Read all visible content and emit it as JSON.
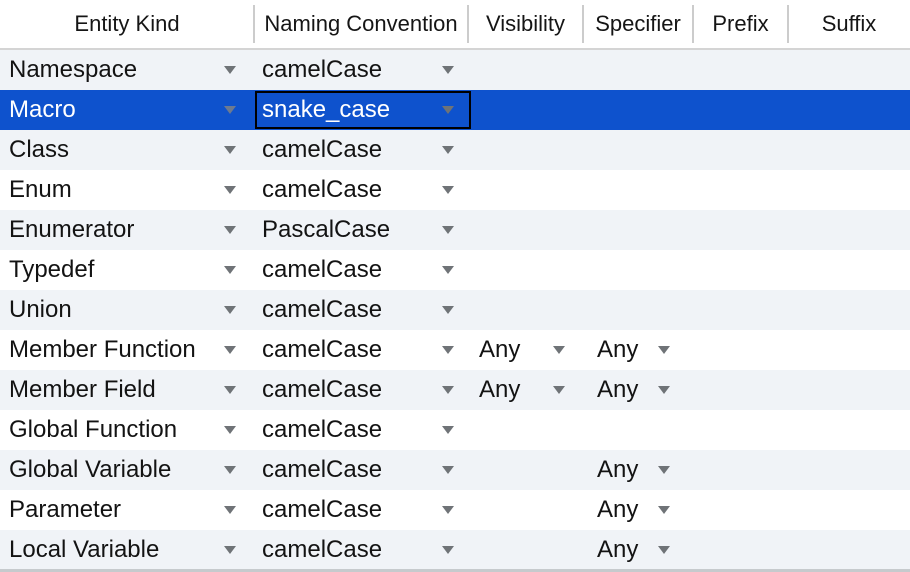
{
  "table": {
    "columns": [
      {
        "label": "Entity Kind"
      },
      {
        "label": "Naming Convention"
      },
      {
        "label": "Visibility"
      },
      {
        "label": "Specifier"
      },
      {
        "label": "Prefix"
      },
      {
        "label": "Suffix"
      }
    ],
    "rows": [
      {
        "entity": "Namespace",
        "naming": "camelCase",
        "visibility": "",
        "specifier": "",
        "prefix": "",
        "suffix": "",
        "selected": false
      },
      {
        "entity": "Macro",
        "naming": "snake_case",
        "visibility": "",
        "specifier": "",
        "prefix": "",
        "suffix": "",
        "selected": true
      },
      {
        "entity": "Class",
        "naming": "camelCase",
        "visibility": "",
        "specifier": "",
        "prefix": "",
        "suffix": "",
        "selected": false
      },
      {
        "entity": "Enum",
        "naming": "camelCase",
        "visibility": "",
        "specifier": "",
        "prefix": "",
        "suffix": "",
        "selected": false
      },
      {
        "entity": "Enumerator",
        "naming": "PascalCase",
        "visibility": "",
        "specifier": "",
        "prefix": "",
        "suffix": "",
        "selected": false
      },
      {
        "entity": "Typedef",
        "naming": "camelCase",
        "visibility": "",
        "specifier": "",
        "prefix": "",
        "suffix": "",
        "selected": false
      },
      {
        "entity": "Union",
        "naming": "camelCase",
        "visibility": "",
        "specifier": "",
        "prefix": "",
        "suffix": "",
        "selected": false
      },
      {
        "entity": "Member Function",
        "naming": "camelCase",
        "visibility": "Any",
        "specifier": "Any",
        "prefix": "",
        "suffix": "",
        "selected": false
      },
      {
        "entity": "Member Field",
        "naming": "camelCase",
        "visibility": "Any",
        "specifier": "Any",
        "prefix": "",
        "suffix": "",
        "selected": false
      },
      {
        "entity": "Global Function",
        "naming": "camelCase",
        "visibility": "",
        "specifier": "",
        "prefix": "",
        "suffix": "",
        "selected": false
      },
      {
        "entity": "Global Variable",
        "naming": "camelCase",
        "visibility": "",
        "specifier": "Any",
        "prefix": "",
        "suffix": "",
        "selected": false
      },
      {
        "entity": "Parameter",
        "naming": "camelCase",
        "visibility": "",
        "specifier": "Any",
        "prefix": "",
        "suffix": "",
        "selected": false
      },
      {
        "entity": "Local Variable",
        "naming": "camelCase",
        "visibility": "",
        "specifier": "Any",
        "prefix": "",
        "suffix": "",
        "selected": false
      }
    ],
    "focused_cell": {
      "row": "Macro",
      "column": "Naming Convention"
    }
  },
  "colors": {
    "selection_background": "#0e52cd",
    "selection_text": "#ffffff",
    "stripe_background": "#f0f3f7",
    "row_background": "#ffffff",
    "text": "#131313",
    "arrow": "#6f7377",
    "focus_outline": "#000000",
    "header_border": "#d4d4d4",
    "header_separator": "#cccccc",
    "bottom_edge": "#c6cacd"
  }
}
